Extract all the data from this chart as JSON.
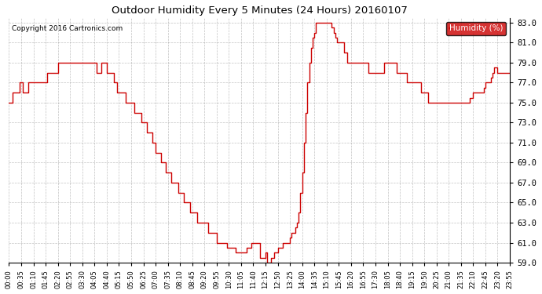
{
  "title": "Outdoor Humidity Every 5 Minutes (24 Hours) 20160107",
  "copyright": "Copyright 2016 Cartronics.com",
  "legend_label": "Humidity (%)",
  "legend_bg": "#cc0000",
  "legend_text_color": "#ffffff",
  "line_color": "#cc0000",
  "bg_color": "#ffffff",
  "plot_bg_color": "#ffffff",
  "grid_color": "#999999",
  "ylim": [
    59.0,
    83.5
  ],
  "yticks": [
    59.0,
    61.0,
    63.0,
    65.0,
    67.0,
    69.0,
    71.0,
    73.0,
    75.0,
    77.0,
    79.0,
    81.0,
    83.0
  ],
  "time_labels": [
    "00:00",
    "00:35",
    "01:10",
    "01:45",
    "02:20",
    "02:55",
    "03:30",
    "04:05",
    "04:40",
    "05:15",
    "05:50",
    "06:25",
    "07:00",
    "07:35",
    "08:10",
    "08:45",
    "09:20",
    "09:55",
    "10:30",
    "11:05",
    "11:40",
    "12:15",
    "12:50",
    "13:25",
    "14:00",
    "14:35",
    "15:10",
    "15:45",
    "16:20",
    "16:55",
    "17:30",
    "18:05",
    "18:40",
    "19:15",
    "19:50",
    "20:25",
    "21:00",
    "21:35",
    "22:10",
    "22:45",
    "23:20",
    "23:55"
  ],
  "humidity_values": [
    75.0,
    75.0,
    76.0,
    76.0,
    76.0,
    76.0,
    77.0,
    77.0,
    76.0,
    76.0,
    76.0,
    77.0,
    77.0,
    77.0,
    77.0,
    77.0,
    77.0,
    77.0,
    77.0,
    77.0,
    77.0,
    77.0,
    78.0,
    78.0,
    78.0,
    78.0,
    78.0,
    78.0,
    79.0,
    79.0,
    79.0,
    79.0,
    79.0,
    79.0,
    79.0,
    79.0,
    79.0,
    79.0,
    79.0,
    79.0,
    79.0,
    79.0,
    79.0,
    79.0,
    79.0,
    79.0,
    79.0,
    79.0,
    79.0,
    79.0,
    78.0,
    78.0,
    78.0,
    79.0,
    79.0,
    79.0,
    78.0,
    78.0,
    78.0,
    78.0,
    77.0,
    77.0,
    76.0,
    76.0,
    76.0,
    76.0,
    76.0,
    75.0,
    75.0,
    75.0,
    75.0,
    75.0,
    74.0,
    74.0,
    74.0,
    74.0,
    73.0,
    73.0,
    73.0,
    72.0,
    72.0,
    72.0,
    71.0,
    71.0,
    70.0,
    70.0,
    70.0,
    69.0,
    69.0,
    69.0,
    68.0,
    68.0,
    68.0,
    67.0,
    67.0,
    67.0,
    67.0,
    66.0,
    66.0,
    66.0,
    65.0,
    65.0,
    65.0,
    65.0,
    64.0,
    64.0,
    64.0,
    64.0,
    63.0,
    63.0,
    63.0,
    63.0,
    63.0,
    63.0,
    62.0,
    62.0,
    62.0,
    62.0,
    62.0,
    61.0,
    61.0,
    61.0,
    61.0,
    61.0,
    61.0,
    60.5,
    60.5,
    60.5,
    60.5,
    60.5,
    60.0,
    60.0,
    60.0,
    60.0,
    60.0,
    60.0,
    60.5,
    60.5,
    60.5,
    61.0,
    61.0,
    61.0,
    61.0,
    61.0,
    59.5,
    59.5,
    59.5,
    60.0,
    59.0,
    59.0,
    59.5,
    59.5,
    60.0,
    60.0,
    60.5,
    60.5,
    60.5,
    61.0,
    61.0,
    61.0,
    61.0,
    61.5,
    62.0,
    62.0,
    62.5,
    63.0,
    64.0,
    66.0,
    68.0,
    71.0,
    74.0,
    77.0,
    79.0,
    80.5,
    81.5,
    82.0,
    83.0,
    83.0,
    83.0,
    83.0,
    83.0,
    83.0,
    83.0,
    83.0,
    83.0,
    82.5,
    82.0,
    81.5,
    81.0,
    81.0,
    81.0,
    81.0,
    80.0,
    80.0,
    79.0,
    79.0,
    79.0,
    79.0,
    79.0,
    79.0,
    79.0,
    79.0,
    79.0,
    79.0,
    79.0,
    79.0,
    78.0,
    78.0,
    78.0,
    78.0,
    78.0,
    78.0,
    78.0,
    78.0,
    78.0,
    79.0,
    79.0,
    79.0,
    79.0,
    79.0,
    79.0,
    79.0,
    78.0,
    78.0,
    78.0,
    78.0,
    78.0,
    78.0,
    77.0,
    77.0,
    77.0,
    77.0,
    77.0,
    77.0,
    77.0,
    77.0,
    76.0,
    76.0,
    76.0,
    76.0,
    75.0,
    75.0,
    75.0,
    75.0,
    75.0,
    75.0,
    75.0,
    75.0,
    75.0,
    75.0,
    75.0,
    75.0,
    75.0,
    75.0,
    75.0,
    75.0,
    75.0,
    75.0,
    75.0,
    75.0,
    75.0,
    75.0,
    75.0,
    75.0,
    75.5,
    75.5,
    76.0,
    76.0,
    76.0,
    76.0,
    76.0,
    76.0,
    76.5,
    77.0,
    77.0,
    77.0,
    77.5,
    78.0,
    78.5,
    78.5,
    78.0,
    78.0,
    78.0,
    78.0,
    78.0,
    78.0,
    78.0,
    78.0
  ]
}
